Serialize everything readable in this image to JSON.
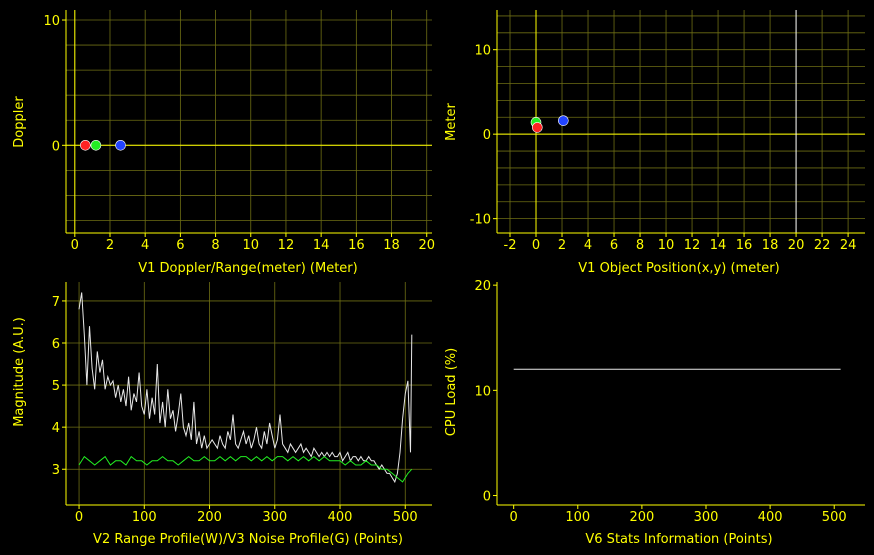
{
  "colors": {
    "background": "#000000",
    "axis": "#ffff00",
    "grid": "#6e6e14",
    "white_trace": "#e8e8e8",
    "green_trace": "#22ee22",
    "point_red": "#ff2222",
    "point_green": "#22ee22",
    "point_blue": "#2244ff"
  },
  "chart_data": [
    {
      "type": "scatter",
      "id": "doppler",
      "xlabel": "V1 Doppler/Range(meter) (Meter)",
      "ylabel": "Doppler",
      "xlim": [
        -0.5,
        20.3
      ],
      "ylim": [
        -7,
        10.8
      ],
      "xticks": [
        0,
        2,
        4,
        6,
        8,
        10,
        12,
        14,
        16,
        18,
        20
      ],
      "yticks": [
        0,
        10
      ],
      "gridx": [
        0,
        2,
        4,
        6,
        8,
        10,
        12,
        14,
        16,
        18,
        20
      ],
      "gridy": [
        -6,
        -4,
        -2,
        0,
        2,
        4,
        6,
        8,
        10
      ],
      "zero_lines": {
        "x": 0,
        "y": 0
      },
      "grid": true,
      "points": [
        {
          "x": 0.6,
          "y": 0,
          "color": "red"
        },
        {
          "x": 1.2,
          "y": 0,
          "color": "green"
        },
        {
          "x": 2.6,
          "y": 0,
          "color": "blue"
        }
      ]
    },
    {
      "type": "scatter",
      "id": "position",
      "xlabel": "V1 Object Position(x,y) (meter)",
      "ylabel": "Meter",
      "xlim": [
        -3,
        25.3
      ],
      "ylim": [
        -11.7,
        14.7
      ],
      "xticks": [
        -2,
        0,
        2,
        4,
        6,
        8,
        10,
        12,
        14,
        16,
        18,
        20,
        22,
        24
      ],
      "yticks": [
        -10,
        0,
        10
      ],
      "gridx": [
        -2,
        0,
        2,
        4,
        6,
        8,
        10,
        12,
        14,
        16,
        18,
        20,
        22,
        24
      ],
      "gridy": [
        -10,
        -8,
        -6,
        -4,
        -2,
        0,
        2,
        4,
        6,
        8,
        10,
        12,
        14
      ],
      "zero_lines": {
        "x": 0,
        "y": 0
      },
      "extra_lines": {
        "x": 20
      },
      "grid": true,
      "points": [
        {
          "x": 0,
          "y": 1.4,
          "color": "green"
        },
        {
          "x": 0.1,
          "y": 0.8,
          "color": "red"
        },
        {
          "x": 2.1,
          "y": 1.6,
          "color": "blue"
        }
      ]
    },
    {
      "type": "line",
      "id": "range_profile",
      "xlabel": "V2 Range Profile(W)/V3 Noise Profile(G) (Points)",
      "ylabel": "Magnitude (A.U.)",
      "xlim": [
        -20,
        541
      ],
      "ylim": [
        2.15,
        7.45
      ],
      "xticks": [
        0,
        100,
        200,
        300,
        400,
        500
      ],
      "yticks": [
        3,
        4,
        5,
        6,
        7
      ],
      "gridx": [
        0,
        100,
        200,
        300,
        400,
        500
      ],
      "gridy": [
        3,
        4,
        5,
        6,
        7
      ],
      "grid": true,
      "series": [
        {
          "color": "white",
          "x": [
            0,
            4,
            8,
            12,
            16,
            20,
            24,
            28,
            32,
            36,
            40,
            44,
            48,
            52,
            56,
            60,
            64,
            68,
            72,
            76,
            80,
            84,
            88,
            92,
            96,
            100,
            104,
            108,
            112,
            116,
            120,
            124,
            128,
            132,
            136,
            140,
            144,
            148,
            152,
            156,
            160,
            164,
            168,
            172,
            176,
            180,
            184,
            188,
            192,
            196,
            200,
            204,
            208,
            212,
            216,
            220,
            224,
            228,
            232,
            236,
            240,
            244,
            248,
            252,
            256,
            260,
            264,
            268,
            272,
            276,
            280,
            284,
            288,
            292,
            296,
            300,
            304,
            308,
            312,
            316,
            320,
            324,
            328,
            332,
            336,
            340,
            344,
            348,
            352,
            356,
            360,
            364,
            368,
            372,
            376,
            380,
            384,
            388,
            392,
            396,
            400,
            404,
            408,
            412,
            416,
            420,
            424,
            428,
            432,
            436,
            440,
            444,
            448,
            452,
            456,
            460,
            464,
            468,
            472,
            476,
            480,
            484,
            488,
            492,
            496,
            500,
            504,
            508,
            510
          ],
          "values": [
            6.8,
            7.2,
            6.2,
            5.0,
            6.4,
            5.4,
            4.9,
            5.8,
            5.3,
            5.6,
            4.9,
            5.2,
            5.0,
            5.1,
            4.7,
            5.0,
            4.6,
            4.9,
            4.5,
            5.2,
            4.4,
            4.8,
            4.6,
            5.3,
            4.5,
            4.3,
            4.9,
            4.2,
            4.7,
            4.3,
            5.5,
            4.1,
            4.6,
            4.0,
            4.9,
            4.2,
            4.4,
            3.9,
            4.3,
            4.8,
            4.0,
            3.8,
            4.1,
            3.7,
            4.6,
            3.6,
            3.9,
            3.5,
            3.8,
            3.5,
            3.6,
            3.7,
            3.6,
            3.5,
            3.8,
            3.6,
            3.5,
            3.9,
            3.7,
            4.3,
            3.6,
            3.5,
            3.7,
            3.9,
            3.6,
            3.8,
            3.5,
            3.7,
            4.0,
            3.6,
            3.5,
            3.9,
            3.6,
            4.1,
            3.8,
            3.5,
            3.7,
            4.3,
            3.6,
            3.5,
            3.4,
            3.6,
            3.5,
            3.4,
            3.5,
            3.6,
            3.4,
            3.5,
            3.4,
            3.3,
            3.5,
            3.4,
            3.3,
            3.4,
            3.3,
            3.4,
            3.3,
            3.4,
            3.3,
            3.3,
            3.4,
            3.2,
            3.3,
            3.4,
            3.2,
            3.3,
            3.3,
            3.2,
            3.3,
            3.2,
            3.2,
            3.3,
            3.2,
            3.2,
            3.1,
            3.0,
            3.1,
            3.0,
            2.9,
            2.9,
            2.8,
            2.7,
            2.9,
            3.4,
            4.2,
            4.8,
            5.1,
            3.4,
            6.2
          ]
        },
        {
          "color": "green",
          "x": [
            0,
            8,
            16,
            24,
            32,
            40,
            48,
            56,
            64,
            72,
            80,
            88,
            96,
            104,
            112,
            120,
            128,
            136,
            144,
            152,
            160,
            168,
            176,
            184,
            192,
            200,
            208,
            216,
            224,
            232,
            240,
            248,
            256,
            264,
            272,
            280,
            288,
            296,
            304,
            312,
            320,
            328,
            336,
            344,
            352,
            360,
            368,
            376,
            384,
            392,
            400,
            408,
            416,
            424,
            432,
            440,
            448,
            456,
            464,
            472,
            480,
            488,
            496,
            504,
            510
          ],
          "values": [
            3.1,
            3.3,
            3.2,
            3.1,
            3.2,
            3.3,
            3.1,
            3.2,
            3.2,
            3.1,
            3.3,
            3.2,
            3.2,
            3.1,
            3.2,
            3.2,
            3.3,
            3.2,
            3.2,
            3.1,
            3.2,
            3.3,
            3.2,
            3.2,
            3.3,
            3.2,
            3.2,
            3.3,
            3.2,
            3.3,
            3.2,
            3.3,
            3.3,
            3.2,
            3.3,
            3.2,
            3.3,
            3.2,
            3.3,
            3.3,
            3.2,
            3.3,
            3.2,
            3.3,
            3.2,
            3.3,
            3.2,
            3.3,
            3.2,
            3.2,
            3.2,
            3.1,
            3.2,
            3.1,
            3.1,
            3.2,
            3.1,
            3.1,
            3.0,
            3.0,
            2.9,
            2.8,
            2.7,
            2.9,
            3.0
          ]
        }
      ]
    },
    {
      "type": "line",
      "id": "stats",
      "xlabel": "V6 Stats Information (Points)",
      "ylabel": "CPU Load (%)",
      "xlim": [
        -26,
        548
      ],
      "ylim": [
        -0.9,
        20.3
      ],
      "xticks": [
        0,
        100,
        200,
        300,
        400,
        500
      ],
      "yticks": [
        0,
        10,
        20
      ],
      "grid": false,
      "series": [
        {
          "color": "white",
          "x": [
            0,
            510
          ],
          "values": [
            12,
            12
          ]
        }
      ]
    }
  ]
}
